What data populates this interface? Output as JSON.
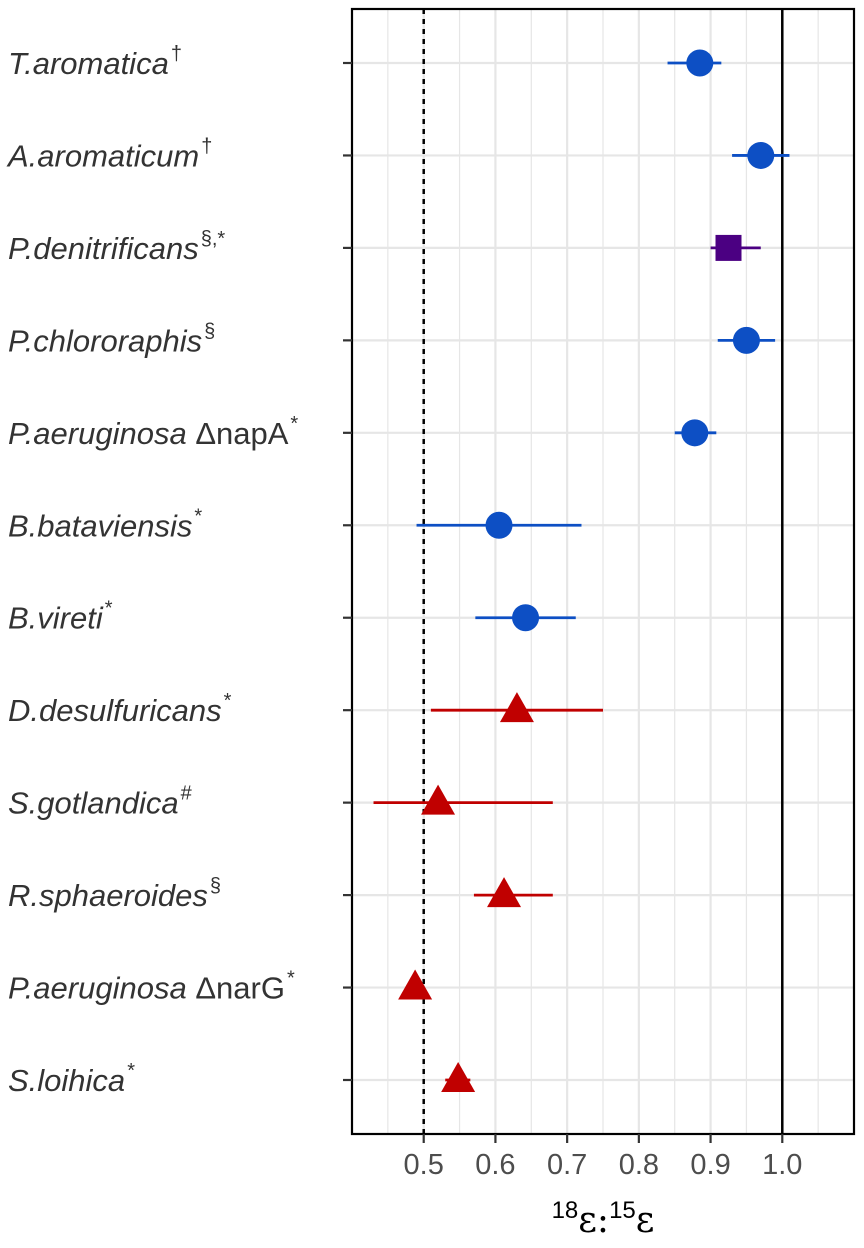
{
  "chart_data": {
    "type": "scatter",
    "xlabel": {
      "pre_sup": "18",
      "base1": "ε",
      "colon": ":",
      "mid_sup": "15",
      "base2": "ε"
    },
    "xlim": [
      0.4,
      1.1
    ],
    "x_ticks": [
      "0.5",
      "0.6",
      "0.7",
      "0.8",
      "0.9",
      "1.0"
    ],
    "reference_lines": [
      {
        "x": 0.5,
        "style": "dotted"
      },
      {
        "x": 1.0,
        "style": "solid"
      }
    ],
    "grid": true,
    "colors": {
      "blue": "#0d4fc4",
      "purple": "#4b0082",
      "red": "#c00000"
    },
    "rows": [
      {
        "label": "T.aromatica",
        "sup": "†",
        "value": 0.885,
        "low": 0.84,
        "high": 0.915,
        "shape": "circle",
        "color": "#0d4fc4"
      },
      {
        "label": "A.aromaticum",
        "sup": "†",
        "value": 0.97,
        "low": 0.93,
        "high": 1.01,
        "shape": "circle",
        "color": "#0d4fc4"
      },
      {
        "label": "P.denitrificans",
        "sup": "§,*",
        "value": 0.925,
        "low": 0.9,
        "high": 0.97,
        "shape": "square",
        "color": "#4b0082"
      },
      {
        "label": "P.chlororaphis",
        "sup": "§",
        "value": 0.95,
        "low": 0.91,
        "high": 0.99,
        "shape": "circle",
        "color": "#0d4fc4"
      },
      {
        "label": "P.aeruginosa",
        "suffix": "ΔnapA",
        "sup": "*",
        "value": 0.878,
        "low": 0.85,
        "high": 0.908,
        "shape": "circle",
        "color": "#0d4fc4"
      },
      {
        "label": "B.bataviensis",
        "sup": "*",
        "value": 0.605,
        "low": 0.49,
        "high": 0.72,
        "shape": "circle",
        "color": "#0d4fc4"
      },
      {
        "label": "B.vireti",
        "sup": "*",
        "value": 0.642,
        "low": 0.572,
        "high": 0.712,
        "shape": "circle",
        "color": "#0d4fc4"
      },
      {
        "label": "D.desulfuricans",
        "sup": "*",
        "value": 0.63,
        "low": 0.51,
        "high": 0.75,
        "shape": "triangle",
        "color": "#c00000"
      },
      {
        "label": "S.gotlandica",
        "sup": "#",
        "value": 0.52,
        "low": 0.43,
        "high": 0.68,
        "shape": "triangle",
        "color": "#c00000"
      },
      {
        "label": "R.sphaeroides",
        "sup": "§",
        "value": 0.612,
        "low": 0.57,
        "high": 0.68,
        "shape": "triangle",
        "color": "#c00000"
      },
      {
        "label": "P.aeruginosa",
        "suffix": "ΔnarG",
        "sup": "*",
        "value": 0.488,
        "low": null,
        "high": null,
        "shape": "triangle",
        "color": "#c00000"
      },
      {
        "label": "S.loihica",
        "sup": "*",
        "value": 0.548,
        "low": 0.53,
        "high": 0.565,
        "shape": "triangle",
        "color": "#c00000"
      }
    ]
  }
}
